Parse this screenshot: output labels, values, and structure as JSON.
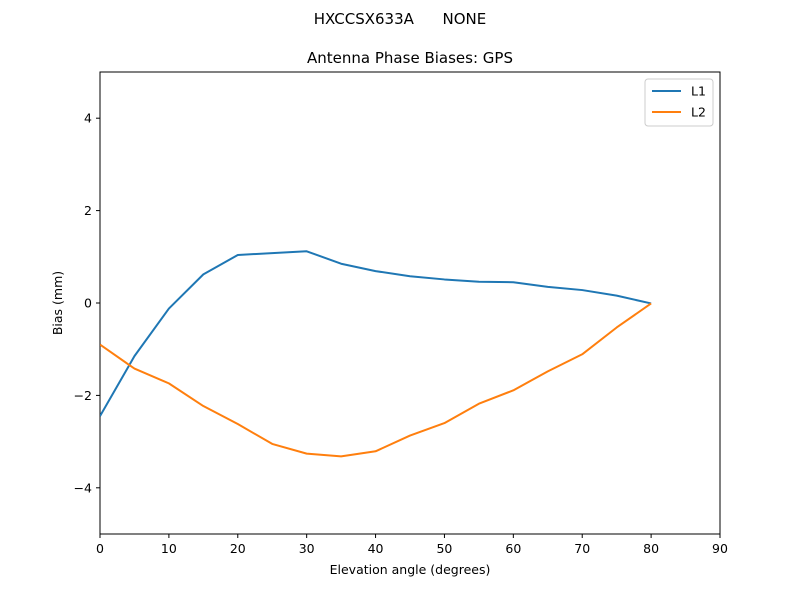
{
  "chart_data": {
    "type": "line",
    "suptitle": "HXCCSX633A      NONE",
    "title": "Antenna Phase Biases: GPS",
    "xlabel": "Elevation angle (degrees)",
    "ylabel": "Bias (mm)",
    "xlim": [
      0,
      90
    ],
    "ylim": [
      -5,
      5
    ],
    "xticks": [
      0,
      10,
      20,
      30,
      40,
      50,
      60,
      70,
      80,
      90
    ],
    "yticks": [
      -4,
      -2,
      0,
      2,
      4
    ],
    "xtick_labels": [
      "0",
      "10",
      "20",
      "30",
      "40",
      "50",
      "60",
      "70",
      "80",
      "90"
    ],
    "ytick_labels": [
      "−4",
      "−2",
      "0",
      "2",
      "4"
    ],
    "grid": false,
    "legend_position": "top-right",
    "x": [
      0,
      5,
      10,
      15,
      20,
      25,
      30,
      35,
      40,
      45,
      50,
      55,
      60,
      65,
      70,
      75,
      80
    ],
    "series": [
      {
        "name": "L1",
        "color": "#1f77b4",
        "values": [
          -2.45,
          -1.15,
          -0.12,
          0.62,
          1.04,
          1.08,
          1.12,
          0.85,
          0.69,
          0.58,
          0.51,
          0.46,
          0.45,
          0.35,
          0.28,
          0.16,
          -0.01
        ]
      },
      {
        "name": "L2",
        "color": "#ff7f0e",
        "values": [
          -0.9,
          -1.42,
          -1.74,
          -2.23,
          -2.62,
          -3.05,
          -3.26,
          -3.32,
          -3.21,
          -2.87,
          -2.6,
          -2.18,
          -1.89,
          -1.48,
          -1.11,
          -0.53,
          -0.01
        ]
      }
    ]
  }
}
